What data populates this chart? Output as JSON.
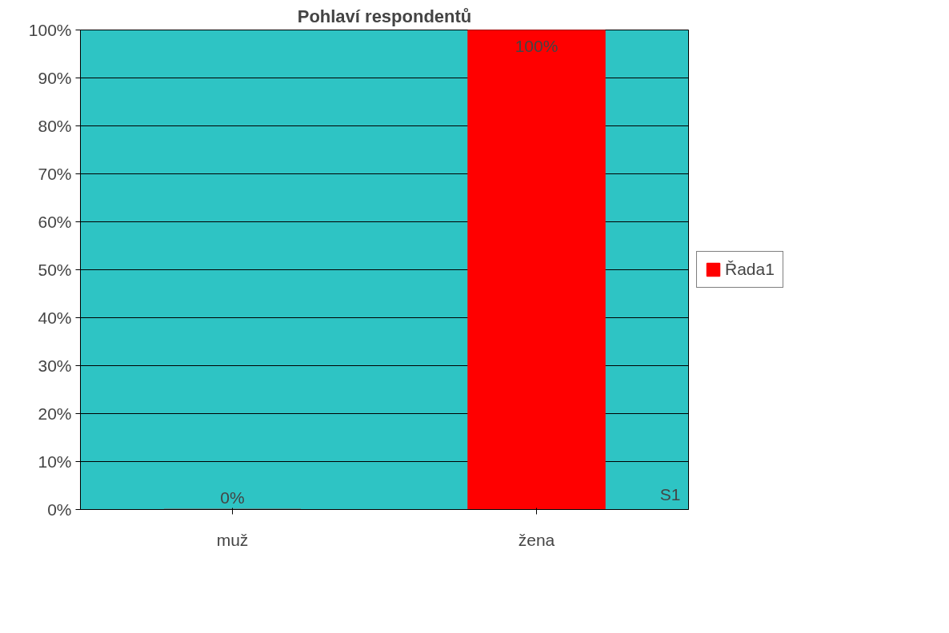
{
  "chart_data": {
    "type": "bar",
    "title": "Pohlaví respondentů",
    "categories": [
      "muž",
      "žena"
    ],
    "series": [
      {
        "name": "Řada1",
        "color": "#ff0000",
        "values": [
          0,
          100
        ],
        "value_labels": [
          "0%",
          "100%"
        ]
      }
    ],
    "ylim": [
      0,
      100
    ],
    "yticks": [
      {
        "value": 0,
        "label": "0%"
      },
      {
        "value": 10,
        "label": "10%"
      },
      {
        "value": 20,
        "label": "20%"
      },
      {
        "value": 30,
        "label": "30%"
      },
      {
        "value": 40,
        "label": "40%"
      },
      {
        "value": 50,
        "label": "50%"
      },
      {
        "value": 60,
        "label": "60%"
      },
      {
        "value": 70,
        "label": "70%"
      },
      {
        "value": 80,
        "label": "80%"
      },
      {
        "value": 90,
        "label": "90%"
      },
      {
        "value": 100,
        "label": "100%"
      }
    ],
    "grid": "y",
    "legend": "right",
    "annotations": [
      "S1"
    ]
  }
}
